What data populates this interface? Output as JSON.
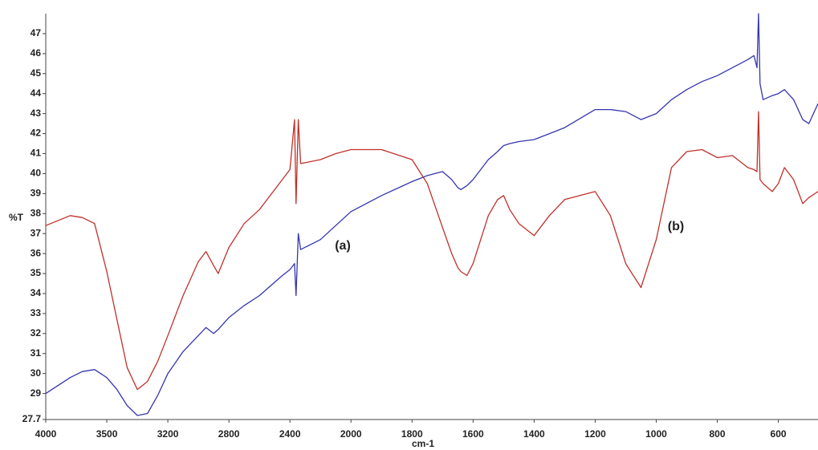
{
  "chart_data": {
    "type": "line",
    "xlabel": "cm-1",
    "ylabel": "%T",
    "x": [
      4000,
      3800,
      3700,
      3600,
      3500,
      3450,
      3400,
      3350,
      3300,
      3250,
      3200,
      3100,
      3000,
      2950,
      2900,
      2870,
      2800,
      2700,
      2600,
      2450,
      2400,
      2370,
      2360,
      2345,
      2330,
      2200,
      2100,
      2000,
      1900,
      1800,
      1750,
      1700,
      1670,
      1650,
      1640,
      1620,
      1600,
      1550,
      1520,
      1500,
      1480,
      1450,
      1400,
      1350,
      1300,
      1200,
      1150,
      1100,
      1050,
      1000,
      950,
      900,
      850,
      800,
      750,
      700,
      680,
      670,
      665,
      660,
      650,
      620,
      600,
      580,
      550,
      520,
      500,
      470
    ],
    "series": [
      {
        "name": "(a)",
        "color": "#3535b0",
        "values": [
          29.0,
          29.8,
          30.1,
          30.2,
          29.8,
          29.2,
          28.4,
          27.9,
          28.0,
          28.9,
          30.0,
          31.1,
          31.9,
          32.3,
          32.0,
          32.2,
          32.8,
          33.4,
          33.9,
          34.9,
          35.2,
          35.5,
          33.9,
          37.0,
          36.2,
          36.7,
          37.4,
          38.1,
          38.9,
          39.6,
          39.9,
          40.1,
          39.7,
          39.3,
          39.2,
          39.4,
          39.7,
          40.7,
          41.1,
          41.4,
          41.5,
          41.6,
          41.7,
          42.0,
          42.3,
          43.2,
          43.2,
          43.1,
          42.7,
          43.0,
          43.7,
          44.2,
          44.6,
          44.9,
          45.3,
          45.7,
          45.9,
          45.3,
          48.0,
          44.5,
          43.7,
          43.9,
          44.0,
          44.2,
          43.7,
          42.7,
          42.5,
          43.5
        ]
      },
      {
        "name": "(b)",
        "color": "#c0302a",
        "values": [
          37.4,
          37.9,
          37.8,
          37.5,
          35.1,
          32.7,
          30.3,
          29.2,
          29.6,
          30.6,
          31.9,
          33.9,
          35.6,
          36.1,
          35.4,
          35.0,
          36.3,
          37.5,
          38.2,
          39.7,
          40.2,
          42.7,
          38.5,
          42.7,
          40.5,
          40.7,
          41.0,
          41.2,
          41.2,
          40.7,
          39.5,
          37.3,
          36.0,
          35.3,
          35.1,
          34.9,
          35.5,
          37.9,
          38.7,
          38.9,
          38.2,
          37.5,
          36.9,
          37.9,
          38.7,
          39.1,
          37.9,
          35.5,
          34.3,
          36.7,
          40.3,
          41.1,
          41.2,
          40.8,
          40.9,
          40.3,
          40.2,
          40.1,
          43.1,
          39.7,
          39.5,
          39.1,
          39.5,
          40.3,
          39.7,
          38.5,
          38.8,
          39.1
        ]
      }
    ],
    "xlim": [
      4000,
      470
    ],
    "xticks": [
      4000,
      3500,
      3200,
      2800,
      2400,
      2000,
      1800,
      1600,
      1400,
      1200,
      1000,
      800,
      600
    ],
    "ylim": [
      27.7,
      48
    ],
    "yticks": [
      27.7,
      29,
      30,
      31,
      32,
      33,
      34,
      35,
      36,
      37,
      38,
      39,
      40,
      41,
      42,
      43,
      44,
      45,
      46,
      47
    ],
    "grid": false
  }
}
